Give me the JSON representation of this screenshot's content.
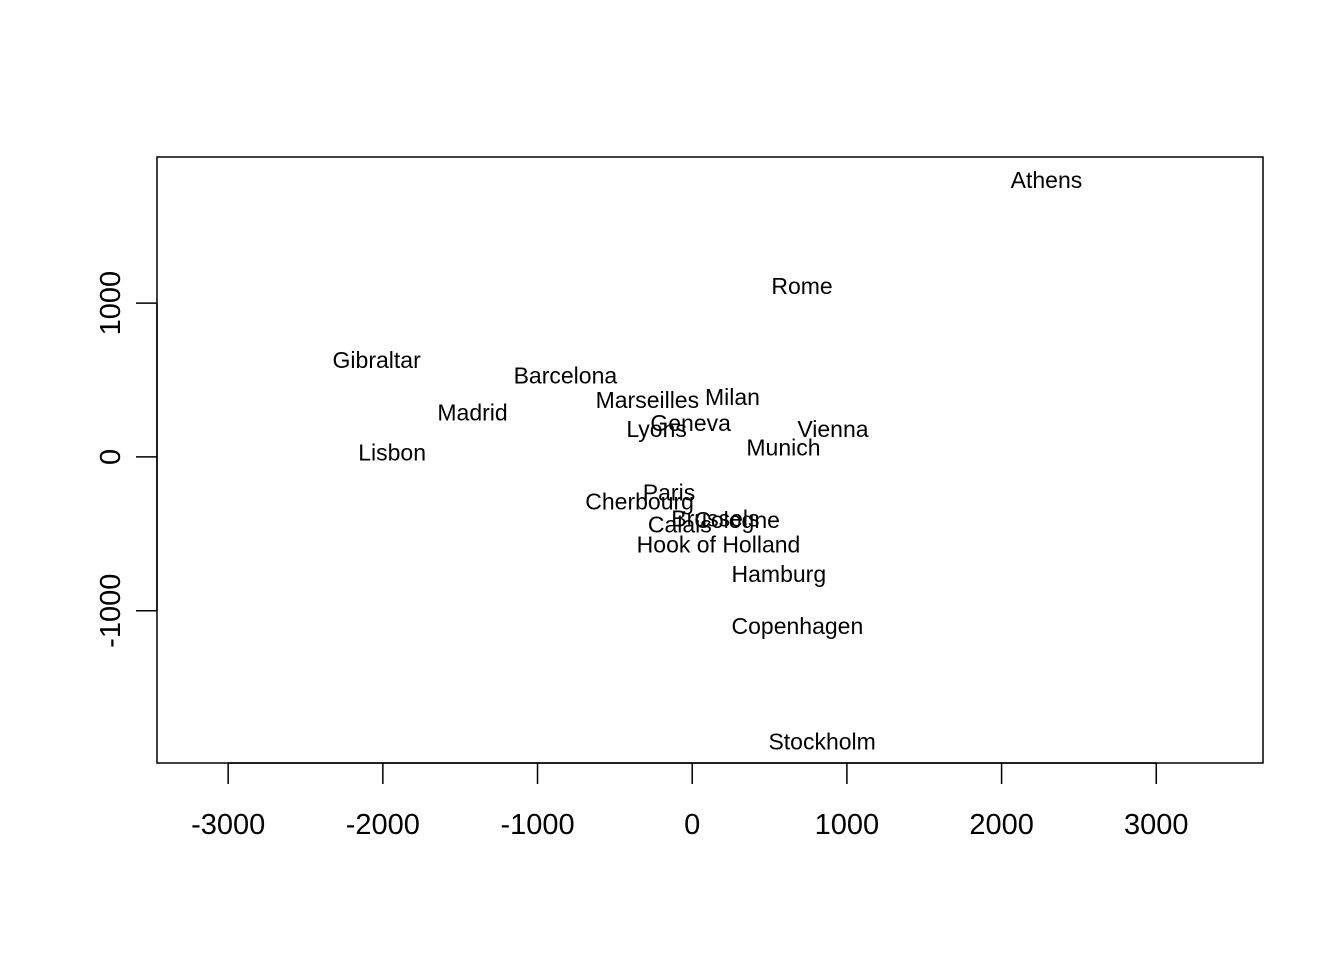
{
  "chart_data": {
    "type": "scatter",
    "title": "",
    "xlabel": "",
    "ylabel": "",
    "xlim": [
      -3460,
      3690
    ],
    "ylim": [
      -1990,
      1950
    ],
    "x_ticks": [
      -3000,
      -2000,
      -1000,
      0,
      1000,
      2000,
      3000
    ],
    "y_ticks": [
      -1000,
      0,
      1000
    ],
    "x_tick_labels": [
      "-3000",
      "-2000",
      "-1000",
      "0",
      "1000",
      "2000",
      "3000"
    ],
    "y_tick_labels": [
      "-1000",
      "0",
      "1000"
    ],
    "grid": false,
    "legend": "none",
    "points": [
      {
        "label": "Athens",
        "x": 2290,
        "y": 1800
      },
      {
        "label": "Rome",
        "x": 710,
        "y": 1110
      },
      {
        "label": "Gibraltar",
        "x": -2040,
        "y": 630
      },
      {
        "label": "Barcelona",
        "x": -820,
        "y": 530
      },
      {
        "label": "Marseilles",
        "x": -290,
        "y": 370
      },
      {
        "label": "Milan",
        "x": 260,
        "y": 390
      },
      {
        "label": "Madrid",
        "x": -1420,
        "y": 290
      },
      {
        "label": "Geneva",
        "x": -10,
        "y": 220
      },
      {
        "label": "Lyons",
        "x": -230,
        "y": 180
      },
      {
        "label": "Vienna",
        "x": 910,
        "y": 180
      },
      {
        "label": "Munich",
        "x": 590,
        "y": 60
      },
      {
        "label": "Lisbon",
        "x": -1940,
        "y": 30
      },
      {
        "label": "Paris",
        "x": -150,
        "y": -230
      },
      {
        "label": "Cherbourg",
        "x": -340,
        "y": -290
      },
      {
        "label": "Brussels",
        "x": 150,
        "y": -400
      },
      {
        "label": "Cologne",
        "x": 290,
        "y": -410
      },
      {
        "label": "Calais",
        "x": -80,
        "y": -440
      },
      {
        "label": "Hook of Holland",
        "x": 170,
        "y": -570
      },
      {
        "label": "Hamburg",
        "x": 560,
        "y": -760
      },
      {
        "label": "Copenhagen",
        "x": 680,
        "y": -1100
      },
      {
        "label": "Stockholm",
        "x": 840,
        "y": -1850
      }
    ]
  }
}
